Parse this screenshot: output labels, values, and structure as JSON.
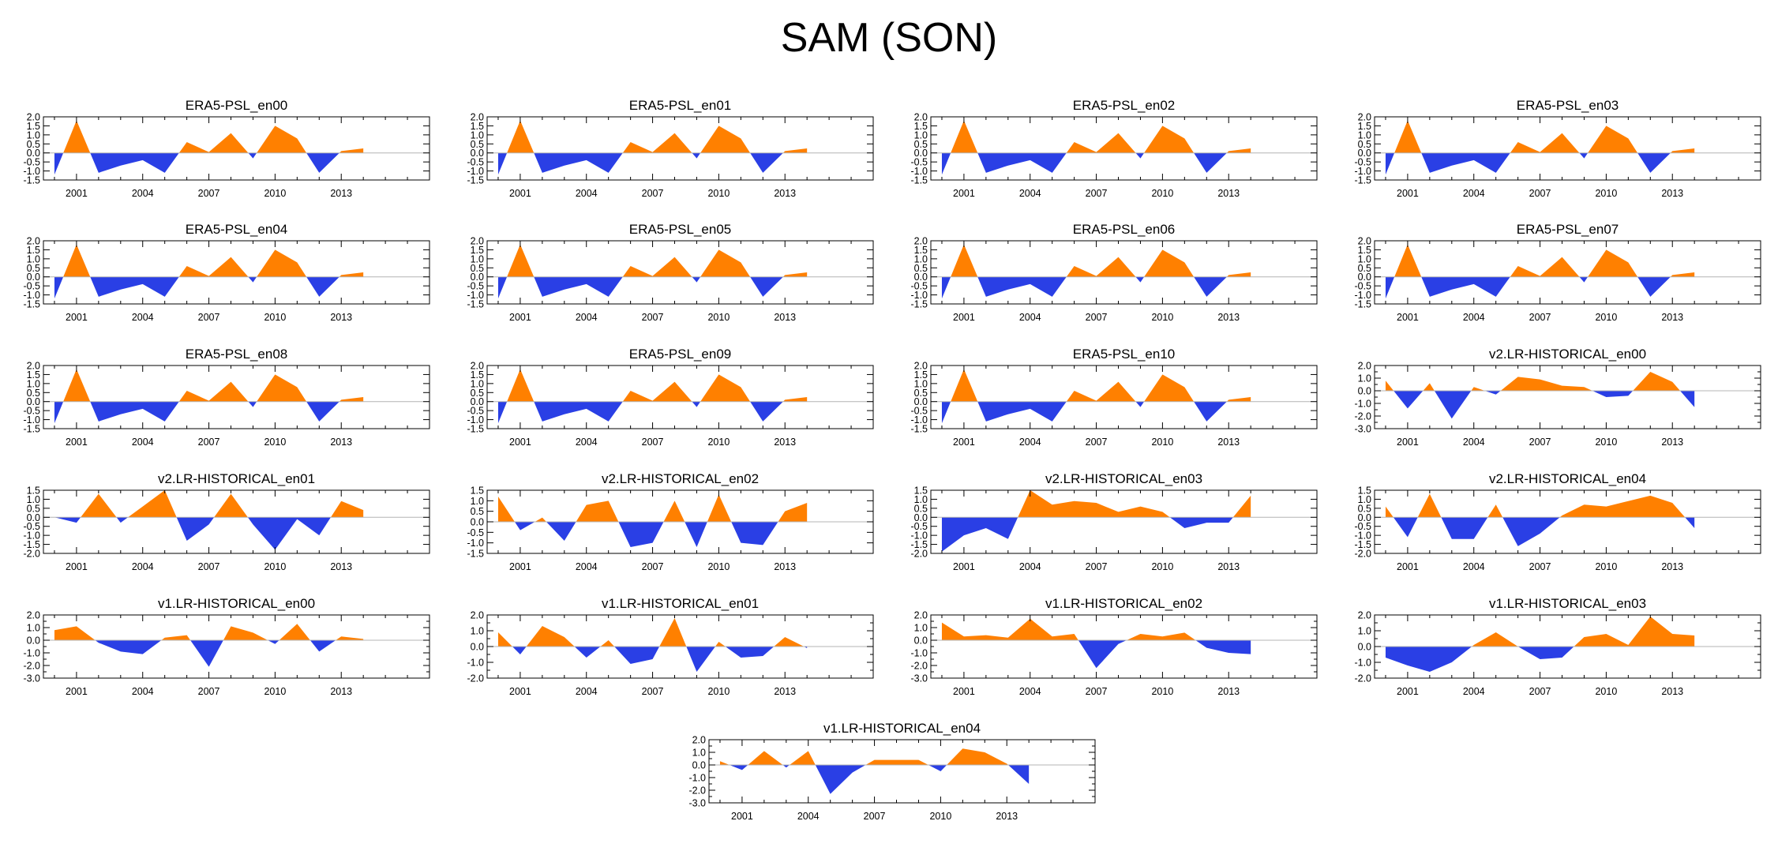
{
  "title": "SAM (SON)",
  "colors": {
    "positive": "#ff8000",
    "negative": "#2a3fe5",
    "frame": "#000000",
    "zero_line": "#b4b4b4"
  },
  "chart_data": [
    {
      "type": "area",
      "title": "ERA5-PSL_en00",
      "x": [
        2000,
        2001,
        2002,
        2003,
        2004,
        2005,
        2006,
        2007,
        2008,
        2009,
        2010,
        2011,
        2012,
        2013,
        2014
      ],
      "values": [
        -1.2,
        1.8,
        -1.1,
        -0.7,
        -0.4,
        -1.1,
        0.6,
        0.05,
        1.1,
        -0.3,
        1.5,
        0.8,
        -1.1,
        0.1,
        0.25
      ],
      "xlim": [
        1999.5,
        2017
      ],
      "ylim": [
        -1.5,
        2.0
      ],
      "yticks": [
        2.0,
        1.5,
        1.0,
        0.5,
        0.0,
        -0.5,
        -1.0,
        -1.5
      ],
      "xticks": [
        2001,
        2004,
        2007,
        2010,
        2013
      ]
    },
    {
      "type": "area",
      "title": "ERA5-PSL_en01",
      "x": [
        2000,
        2001,
        2002,
        2003,
        2004,
        2005,
        2006,
        2007,
        2008,
        2009,
        2010,
        2011,
        2012,
        2013,
        2014
      ],
      "values": [
        -1.2,
        1.8,
        -1.1,
        -0.7,
        -0.4,
        -1.1,
        0.6,
        0.05,
        1.1,
        -0.3,
        1.5,
        0.8,
        -1.1,
        0.1,
        0.25
      ],
      "xlim": [
        1999.5,
        2017
      ],
      "ylim": [
        -1.5,
        2.0
      ],
      "yticks": [
        2.0,
        1.5,
        1.0,
        0.5,
        0.0,
        -0.5,
        -1.0,
        -1.5
      ],
      "xticks": [
        2001,
        2004,
        2007,
        2010,
        2013
      ]
    },
    {
      "type": "area",
      "title": "ERA5-PSL_en02",
      "x": [
        2000,
        2001,
        2002,
        2003,
        2004,
        2005,
        2006,
        2007,
        2008,
        2009,
        2010,
        2011,
        2012,
        2013,
        2014
      ],
      "values": [
        -1.2,
        1.8,
        -1.1,
        -0.7,
        -0.4,
        -1.1,
        0.6,
        0.05,
        1.1,
        -0.3,
        1.5,
        0.8,
        -1.1,
        0.1,
        0.25
      ],
      "xlim": [
        1999.5,
        2017
      ],
      "ylim": [
        -1.5,
        2.0
      ],
      "yticks": [
        2.0,
        1.5,
        1.0,
        0.5,
        0.0,
        -0.5,
        -1.0,
        -1.5
      ],
      "xticks": [
        2001,
        2004,
        2007,
        2010,
        2013
      ]
    },
    {
      "type": "area",
      "title": "ERA5-PSL_en03",
      "x": [
        2000,
        2001,
        2002,
        2003,
        2004,
        2005,
        2006,
        2007,
        2008,
        2009,
        2010,
        2011,
        2012,
        2013,
        2014
      ],
      "values": [
        -1.2,
        1.8,
        -1.1,
        -0.7,
        -0.4,
        -1.1,
        0.6,
        0.05,
        1.1,
        -0.3,
        1.5,
        0.8,
        -1.1,
        0.1,
        0.25
      ],
      "xlim": [
        1999.5,
        2017
      ],
      "ylim": [
        -1.5,
        2.0
      ],
      "yticks": [
        2.0,
        1.5,
        1.0,
        0.5,
        0.0,
        -0.5,
        -1.0,
        -1.5
      ],
      "xticks": [
        2001,
        2004,
        2007,
        2010,
        2013
      ]
    },
    {
      "type": "area",
      "title": "ERA5-PSL_en04",
      "x": [
        2000,
        2001,
        2002,
        2003,
        2004,
        2005,
        2006,
        2007,
        2008,
        2009,
        2010,
        2011,
        2012,
        2013,
        2014
      ],
      "values": [
        -1.2,
        1.8,
        -1.1,
        -0.7,
        -0.4,
        -1.1,
        0.6,
        0.05,
        1.1,
        -0.3,
        1.5,
        0.8,
        -1.1,
        0.1,
        0.25
      ],
      "xlim": [
        1999.5,
        2017
      ],
      "ylim": [
        -1.5,
        2.0
      ],
      "yticks": [
        2.0,
        1.5,
        1.0,
        0.5,
        0.0,
        -0.5,
        -1.0,
        -1.5
      ],
      "xticks": [
        2001,
        2004,
        2007,
        2010,
        2013
      ]
    },
    {
      "type": "area",
      "title": "ERA5-PSL_en05",
      "x": [
        2000,
        2001,
        2002,
        2003,
        2004,
        2005,
        2006,
        2007,
        2008,
        2009,
        2010,
        2011,
        2012,
        2013,
        2014
      ],
      "values": [
        -1.2,
        1.8,
        -1.1,
        -0.7,
        -0.4,
        -1.1,
        0.6,
        0.05,
        1.1,
        -0.3,
        1.5,
        0.8,
        -1.1,
        0.1,
        0.25
      ],
      "xlim": [
        1999.5,
        2017
      ],
      "ylim": [
        -1.5,
        2.0
      ],
      "yticks": [
        2.0,
        1.5,
        1.0,
        0.5,
        0.0,
        -0.5,
        -1.0,
        -1.5
      ],
      "xticks": [
        2001,
        2004,
        2007,
        2010,
        2013
      ]
    },
    {
      "type": "area",
      "title": "ERA5-PSL_en06",
      "x": [
        2000,
        2001,
        2002,
        2003,
        2004,
        2005,
        2006,
        2007,
        2008,
        2009,
        2010,
        2011,
        2012,
        2013,
        2014
      ],
      "values": [
        -1.2,
        1.8,
        -1.1,
        -0.7,
        -0.4,
        -1.1,
        0.6,
        0.05,
        1.1,
        -0.3,
        1.5,
        0.8,
        -1.1,
        0.1,
        0.25
      ],
      "xlim": [
        1999.5,
        2017
      ],
      "ylim": [
        -1.5,
        2.0
      ],
      "yticks": [
        2.0,
        1.5,
        1.0,
        0.5,
        0.0,
        -0.5,
        -1.0,
        -1.5
      ],
      "xticks": [
        2001,
        2004,
        2007,
        2010,
        2013
      ]
    },
    {
      "type": "area",
      "title": "ERA5-PSL_en07",
      "x": [
        2000,
        2001,
        2002,
        2003,
        2004,
        2005,
        2006,
        2007,
        2008,
        2009,
        2010,
        2011,
        2012,
        2013,
        2014
      ],
      "values": [
        -1.2,
        1.8,
        -1.1,
        -0.7,
        -0.4,
        -1.1,
        0.6,
        0.05,
        1.1,
        -0.3,
        1.5,
        0.8,
        -1.1,
        0.1,
        0.25
      ],
      "xlim": [
        1999.5,
        2017
      ],
      "ylim": [
        -1.5,
        2.0
      ],
      "yticks": [
        2.0,
        1.5,
        1.0,
        0.5,
        0.0,
        -0.5,
        -1.0,
        -1.5
      ],
      "xticks": [
        2001,
        2004,
        2007,
        2010,
        2013
      ]
    },
    {
      "type": "area",
      "title": "ERA5-PSL_en08",
      "x": [
        2000,
        2001,
        2002,
        2003,
        2004,
        2005,
        2006,
        2007,
        2008,
        2009,
        2010,
        2011,
        2012,
        2013,
        2014
      ],
      "values": [
        -1.2,
        1.8,
        -1.1,
        -0.7,
        -0.4,
        -1.1,
        0.6,
        0.05,
        1.1,
        -0.3,
        1.5,
        0.8,
        -1.1,
        0.1,
        0.25
      ],
      "xlim": [
        1999.5,
        2017
      ],
      "ylim": [
        -1.5,
        2.0
      ],
      "yticks": [
        2.0,
        1.5,
        1.0,
        0.5,
        0.0,
        -0.5,
        -1.0,
        -1.5
      ],
      "xticks": [
        2001,
        2004,
        2007,
        2010,
        2013
      ]
    },
    {
      "type": "area",
      "title": "ERA5-PSL_en09",
      "x": [
        2000,
        2001,
        2002,
        2003,
        2004,
        2005,
        2006,
        2007,
        2008,
        2009,
        2010,
        2011,
        2012,
        2013,
        2014
      ],
      "values": [
        -1.2,
        1.8,
        -1.1,
        -0.7,
        -0.4,
        -1.1,
        0.6,
        0.05,
        1.1,
        -0.3,
        1.5,
        0.8,
        -1.1,
        0.1,
        0.25
      ],
      "xlim": [
        1999.5,
        2017
      ],
      "ylim": [
        -1.5,
        2.0
      ],
      "yticks": [
        2.0,
        1.5,
        1.0,
        0.5,
        0.0,
        -0.5,
        -1.0,
        -1.5
      ],
      "xticks": [
        2001,
        2004,
        2007,
        2010,
        2013
      ]
    },
    {
      "type": "area",
      "title": "ERA5-PSL_en10",
      "x": [
        2000,
        2001,
        2002,
        2003,
        2004,
        2005,
        2006,
        2007,
        2008,
        2009,
        2010,
        2011,
        2012,
        2013,
        2014
      ],
      "values": [
        -1.2,
        1.8,
        -1.1,
        -0.7,
        -0.4,
        -1.1,
        0.6,
        0.05,
        1.1,
        -0.3,
        1.5,
        0.8,
        -1.1,
        0.1,
        0.25
      ],
      "xlim": [
        1999.5,
        2017
      ],
      "ylim": [
        -1.5,
        2.0
      ],
      "yticks": [
        2.0,
        1.5,
        1.0,
        0.5,
        0.0,
        -0.5,
        -1.0,
        -1.5
      ],
      "xticks": [
        2001,
        2004,
        2007,
        2010,
        2013
      ]
    },
    {
      "type": "area",
      "title": "v2.LR-HISTORICAL_en00",
      "x": [
        2000,
        2001,
        2002,
        2003,
        2004,
        2005,
        2006,
        2007,
        2008,
        2009,
        2010,
        2011,
        2012,
        2013,
        2014
      ],
      "values": [
        0.8,
        -1.4,
        0.6,
        -2.2,
        0.3,
        -0.3,
        1.1,
        0.9,
        0.4,
        0.3,
        -0.5,
        -0.4,
        1.5,
        0.7,
        -1.3
      ],
      "xlim": [
        1999.5,
        2017
      ],
      "ylim": [
        -3.0,
        2.0
      ],
      "yticks": [
        2.0,
        1.0,
        0.0,
        -1.0,
        -2.0,
        -3.0
      ],
      "minor_step": 0.5,
      "xticks": [
        2001,
        2004,
        2007,
        2010,
        2013
      ]
    },
    {
      "type": "area",
      "title": "v2.LR-HISTORICAL_en01",
      "x": [
        2000,
        2001,
        2002,
        2003,
        2004,
        2005,
        2006,
        2007,
        2008,
        2009,
        2010,
        2011,
        2012,
        2013,
        2014
      ],
      "values": [
        0.0,
        -0.3,
        1.3,
        -0.3,
        0.6,
        1.5,
        -1.3,
        -0.4,
        1.3,
        -0.4,
        -1.8,
        -0.1,
        -1.0,
        0.9,
        0.4
      ],
      "xlim": [
        1999.5,
        2017
      ],
      "ylim": [
        -2.0,
        1.5
      ],
      "yticks": [
        1.5,
        1.0,
        0.5,
        0.0,
        -0.5,
        -1.0,
        -1.5,
        -2.0
      ],
      "xticks": [
        2001,
        2004,
        2007,
        2010,
        2013
      ]
    },
    {
      "type": "area",
      "title": "v2.LR-HISTORICAL_en02",
      "x": [
        2000,
        2001,
        2002,
        2003,
        2004,
        2005,
        2006,
        2007,
        2008,
        2009,
        2010,
        2011,
        2012,
        2013,
        2014
      ],
      "values": [
        1.2,
        -0.4,
        0.2,
        -0.9,
        0.8,
        1.0,
        -1.2,
        -1.0,
        1.0,
        -1.2,
        1.3,
        -1.0,
        -1.1,
        0.5,
        0.9
      ],
      "xlim": [
        1999.5,
        2017
      ],
      "ylim": [
        -1.5,
        1.5
      ],
      "yticks": [
        1.5,
        1.0,
        0.5,
        0.0,
        -0.5,
        -1.0,
        -1.5
      ],
      "xticks": [
        2001,
        2004,
        2007,
        2010,
        2013
      ]
    },
    {
      "type": "area",
      "title": "v2.LR-HISTORICAL_en03",
      "x": [
        2000,
        2001,
        2002,
        2003,
        2004,
        2005,
        2006,
        2007,
        2008,
        2009,
        2010,
        2011,
        2012,
        2013,
        2014
      ],
      "values": [
        -1.9,
        -1.0,
        -0.6,
        -1.2,
        1.5,
        0.7,
        0.9,
        0.8,
        0.3,
        0.6,
        0.3,
        -0.6,
        -0.3,
        -0.3,
        1.2
      ],
      "xlim": [
        1999.5,
        2017
      ],
      "ylim": [
        -2.0,
        1.5
      ],
      "yticks": [
        1.5,
        1.0,
        0.5,
        0.0,
        -0.5,
        -1.0,
        -1.5,
        -2.0
      ],
      "xticks": [
        2001,
        2004,
        2007,
        2010,
        2013
      ]
    },
    {
      "type": "area",
      "title": "v2.LR-HISTORICAL_en04",
      "x": [
        2000,
        2001,
        2002,
        2003,
        2004,
        2005,
        2006,
        2007,
        2008,
        2009,
        2010,
        2011,
        2012,
        2013,
        2014
      ],
      "values": [
        0.6,
        -1.1,
        1.3,
        -1.2,
        -1.2,
        0.7,
        -1.6,
        -0.9,
        0.1,
        0.7,
        0.6,
        0.9,
        1.2,
        0.8,
        -0.6
      ],
      "xlim": [
        1999.5,
        2017
      ],
      "ylim": [
        -2.0,
        1.5
      ],
      "yticks": [
        1.5,
        1.0,
        0.5,
        0.0,
        -0.5,
        -1.0,
        -1.5,
        -2.0
      ],
      "xticks": [
        2001,
        2004,
        2007,
        2010,
        2013
      ]
    },
    {
      "type": "area",
      "title": "v1.LR-HISTORICAL_en00",
      "x": [
        2000,
        2001,
        2002,
        2003,
        2004,
        2005,
        2006,
        2007,
        2008,
        2009,
        2010,
        2011,
        2012,
        2013,
        2014
      ],
      "values": [
        0.8,
        1.1,
        -0.2,
        -0.9,
        -1.1,
        0.2,
        0.4,
        -2.1,
        1.1,
        0.6,
        -0.3,
        1.3,
        -0.9,
        0.3,
        0.1
      ],
      "xlim": [
        1999.5,
        2017
      ],
      "ylim": [
        -3.0,
        2.0
      ],
      "yticks": [
        2.0,
        1.0,
        0.0,
        -1.0,
        -2.0,
        -3.0
      ],
      "minor_step": 0.5,
      "xticks": [
        2001,
        2004,
        2007,
        2010,
        2013
      ]
    },
    {
      "type": "area",
      "title": "v1.LR-HISTORICAL_en01",
      "x": [
        2000,
        2001,
        2002,
        2003,
        2004,
        2005,
        2006,
        2007,
        2008,
        2009,
        2010,
        2011,
        2012,
        2013,
        2014
      ],
      "values": [
        0.9,
        -0.5,
        1.3,
        0.6,
        -0.7,
        0.4,
        -1.1,
        -0.8,
        1.8,
        -1.6,
        0.3,
        -0.7,
        -0.6,
        0.6,
        -0.1
      ],
      "xlim": [
        1999.5,
        2017
      ],
      "ylim": [
        -2.0,
        2.0
      ],
      "yticks": [
        2.0,
        1.0,
        0.0,
        -1.0,
        -2.0
      ],
      "minor_step": 0.5,
      "xticks": [
        2001,
        2004,
        2007,
        2010,
        2013
      ]
    },
    {
      "type": "area",
      "title": "v1.LR-HISTORICAL_en02",
      "x": [
        2000,
        2001,
        2002,
        2003,
        2004,
        2005,
        2006,
        2007,
        2008,
        2009,
        2010,
        2011,
        2012,
        2013,
        2014
      ],
      "values": [
        1.4,
        0.3,
        0.4,
        0.2,
        1.7,
        0.3,
        0.5,
        -2.2,
        -0.3,
        0.5,
        0.3,
        0.6,
        -0.6,
        -1.0,
        -1.1
      ],
      "xlim": [
        1999.5,
        2017
      ],
      "ylim": [
        -3.0,
        2.0
      ],
      "yticks": [
        2.0,
        1.0,
        0.0,
        -1.0,
        -2.0,
        -3.0
      ],
      "minor_step": 0.5,
      "xticks": [
        2001,
        2004,
        2007,
        2010,
        2013
      ]
    },
    {
      "type": "area",
      "title": "v1.LR-HISTORICAL_en03",
      "x": [
        2000,
        2001,
        2002,
        2003,
        2004,
        2005,
        2006,
        2007,
        2008,
        2009,
        2010,
        2011,
        2012,
        2013,
        2014
      ],
      "values": [
        -0.7,
        -1.2,
        -1.6,
        -1.0,
        0.1,
        0.9,
        0.0,
        -0.8,
        -0.7,
        0.6,
        0.8,
        0.1,
        1.9,
        0.8,
        0.7
      ],
      "xlim": [
        1999.5,
        2017
      ],
      "ylim": [
        -2.0,
        2.0
      ],
      "yticks": [
        2.0,
        1.0,
        0.0,
        -1.0,
        -2.0
      ],
      "minor_step": 0.5,
      "xticks": [
        2001,
        2004,
        2007,
        2010,
        2013
      ]
    },
    {
      "type": "area",
      "title": "v1.LR-HISTORICAL_en04",
      "x": [
        2000,
        2001,
        2002,
        2003,
        2004,
        2005,
        2006,
        2007,
        2008,
        2009,
        2010,
        2011,
        2012,
        2013,
        2014
      ],
      "values": [
        0.3,
        -0.4,
        1.1,
        -0.2,
        1.1,
        -2.3,
        -0.6,
        0.4,
        0.4,
        0.4,
        -0.5,
        1.3,
        1.0,
        0.1,
        -1.5
      ],
      "xlim": [
        1999.5,
        2017
      ],
      "ylim": [
        -3.0,
        2.0
      ],
      "yticks": [
        2.0,
        1.0,
        0.0,
        -1.0,
        -2.0,
        -3.0
      ],
      "minor_step": 0.5,
      "xticks": [
        2001,
        2004,
        2007,
        2010,
        2013
      ]
    }
  ]
}
